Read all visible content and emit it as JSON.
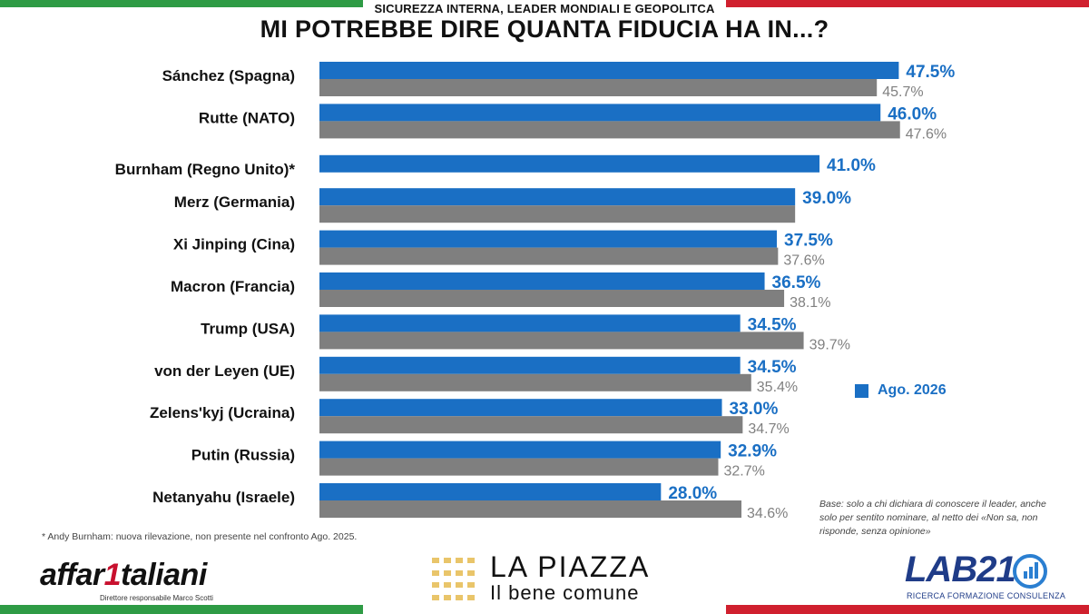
{
  "header": {
    "subtitle": "SICUREZZA INTERNA, LEADER MONDIALI E GEOPOLITCA",
    "title": "MI POTREBBE DIRE QUANTA FIDUCIA HA IN...?"
  },
  "legend": {
    "label": "Ago. 2026"
  },
  "notes": {
    "base": "Base: solo a chi dichiara di conoscere il leader, anche solo per sentito nominare, al netto dei «Non sa, non risponde, senza opinione»",
    "footnote": "* Andy Burnham: nuova rilevazione, non presente nel confronto Ago. 2025."
  },
  "logos": {
    "affari_left": "affar",
    "affari_mark": "1",
    "affari_right": "taliani",
    "affari_sub": "Direttore responsabile Marco Scotti",
    "piazza_name": "LA PIAZZA",
    "piazza_tag": "Il bene comune",
    "lab_name": "LAB21",
    "lab_sub": "RICERCA FORMAZIONE CONSULENZA"
  },
  "colors": {
    "current": "#1a6fc4",
    "previous": "#7f7f7f",
    "previous_label": "#808080",
    "flag_green": "#2e9b45",
    "flag_white": "#ffffff",
    "flag_red": "#d0202e"
  },
  "chart_data": {
    "type": "bar",
    "orientation": "horizontal",
    "categories": [
      "Sánchez (Spagna)",
      "Rutte (NATO)",
      "Burnham (Regno Unito)*",
      "Merz (Germania)",
      "Xi Jinping (Cina)",
      "Macron (Francia)",
      "Trump (USA)",
      "von der Leyen (UE)",
      "Zelens'kyj (Ucraina)",
      "Putin (Russia)",
      "Netanyahu (Israele)"
    ],
    "series": [
      {
        "name": "Ago. 2026",
        "values": [
          47.5,
          46.0,
          41.0,
          39.0,
          37.5,
          36.5,
          34.5,
          34.5,
          33.0,
          32.9,
          28.0
        ],
        "labels": [
          "47.5%",
          "46.0%",
          "41.0%",
          "39.0%",
          "37.5%",
          "36.5%",
          "34.5%",
          "34.5%",
          "33.0%",
          "32.9%",
          "28.0%"
        ]
      },
      {
        "values": [
          45.7,
          47.6,
          null,
          39.0,
          37.6,
          38.1,
          39.7,
          35.4,
          34.7,
          32.7,
          34.6
        ],
        "labels": [
          "45.7%",
          "47.6%",
          "",
          "",
          "37.6%",
          "38.1%",
          "39.7%",
          "35.4%",
          "34.7%",
          "32.7%",
          "34.6%"
        ]
      }
    ],
    "xlim": [
      0,
      50
    ],
    "legend_position": "right",
    "grid": false
  }
}
